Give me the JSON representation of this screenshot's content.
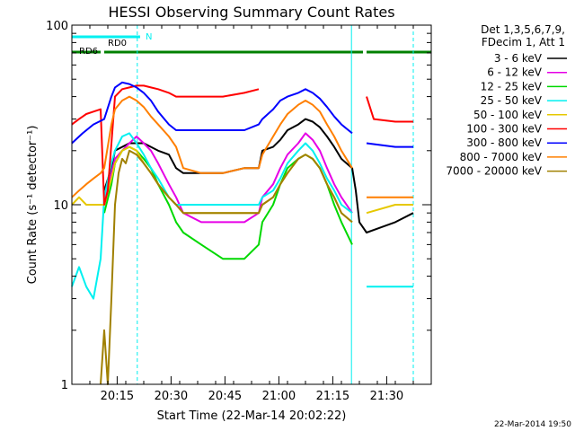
{
  "chart_data": {
    "type": "line",
    "title": "HESSI Observing Summary Count Rates",
    "xlabel": "Start Time (22-Mar-14 20:02:22)",
    "ylabel": "Count Rate (s⁻¹ detector⁻¹)",
    "y_scale": "log",
    "ylim": [
      1,
      100
    ],
    "xlim_minutes": [
      0,
      100
    ],
    "x_ticks": [
      {
        "label": "20:15",
        "t": 12.6
      },
      {
        "label": "20:30",
        "t": 27.6
      },
      {
        "label": "20:45",
        "t": 42.6
      },
      {
        "label": "21:00",
        "t": 57.6
      },
      {
        "label": "21:15",
        "t": 72.6
      },
      {
        "label": "21:30",
        "t": 87.6
      }
    ],
    "y_ticks": [
      {
        "label": "1",
        "v": 1
      },
      {
        "label": "10",
        "v": 10
      },
      {
        "label": "100",
        "v": 100
      }
    ],
    "legend": {
      "placement": "right",
      "header": [
        "Det 1,3,5,6,7,9,",
        "FDecim 1, Att 1"
      ],
      "entries": [
        {
          "label": "3 - 6 keV",
          "color": "#000000"
        },
        {
          "label": "6 - 12 keV",
          "color": "#e600e6"
        },
        {
          "label": "12 - 25 keV",
          "color": "#00d800"
        },
        {
          "label": "25 - 50 keV",
          "color": "#00f0f0"
        },
        {
          "label": "50 - 100 keV",
          "color": "#e6c800"
        },
        {
          "label": "100 - 300 keV",
          "color": "#ff0000"
        },
        {
          "label": "300 - 800 keV",
          "color": "#0000ff"
        },
        {
          "label": "800 - 7000 keV",
          "color": "#ff7f00"
        },
        {
          "label": "7000 - 20000 keV",
          "color": "#a08000"
        }
      ]
    },
    "flags": [
      {
        "label": "RD0",
        "color": "#00f0f0"
      },
      {
        "label": "RD6",
        "color": "#008000"
      },
      {
        "label": "N",
        "color": "#00f0f0"
      }
    ],
    "series": [
      {
        "name": "3 - 6 keV",
        "color": "#000000",
        "x": [
          0,
          3,
          5,
          7,
          9,
          11,
          12,
          14,
          16,
          18,
          20,
          22,
          24,
          27,
          29,
          31,
          36,
          42,
          48,
          52,
          53,
          56,
          58,
          60,
          63,
          65,
          67,
          69,
          71,
          73,
          75,
          78,
          79,
          80,
          82,
          90,
          95
        ],
        "y": [
          null,
          null,
          null,
          null,
          12,
          16,
          20,
          21,
          22,
          22,
          22,
          21,
          20,
          19,
          16,
          15,
          15,
          15,
          16,
          16,
          20,
          21,
          23,
          26,
          28,
          30,
          29,
          27,
          24,
          21,
          18,
          16,
          12,
          8,
          7,
          8,
          9
        ]
      },
      {
        "name": "6 - 12 keV",
        "color": "#e600e6",
        "x": [
          9,
          11,
          12,
          14,
          16,
          18,
          20,
          22,
          24,
          27,
          29,
          31,
          36,
          42,
          48,
          52,
          53,
          56,
          58,
          60,
          63,
          65,
          67,
          69,
          71,
          73,
          75,
          78
        ],
        "y": [
          10,
          15,
          18,
          20,
          22,
          24,
          22,
          20,
          17,
          13,
          11,
          9,
          8,
          8,
          8,
          9,
          11,
          13,
          16,
          19,
          22,
          25,
          23,
          20,
          16,
          13,
          11,
          9
        ]
      },
      {
        "name": "12 - 25 keV",
        "color": "#00d800",
        "x": [
          9,
          11,
          12,
          14,
          16,
          18,
          20,
          22,
          24,
          27,
          29,
          31,
          36,
          42,
          48,
          52,
          53,
          56,
          58,
          60,
          63,
          65,
          67,
          69,
          71,
          73,
          75,
          78
        ],
        "y": [
          9,
          13,
          17,
          20,
          21,
          20,
          18,
          16,
          13,
          10,
          8,
          7,
          6,
          5,
          5,
          6,
          8,
          10,
          13,
          16,
          18,
          19,
          18,
          16,
          13,
          10,
          8,
          6
        ]
      },
      {
        "name": "25 - 50 keV",
        "color": "#00f0f0",
        "x": [
          0,
          2,
          4,
          6,
          8,
          9,
          11,
          12,
          14,
          16,
          18,
          20,
          22,
          24,
          27,
          29,
          31,
          36,
          42,
          48,
          52,
          53,
          56,
          58,
          60,
          63,
          65,
          67,
          69,
          71,
          73,
          75,
          78,
          80,
          82,
          90,
          95
        ],
        "y": [
          3.5,
          4.5,
          3.5,
          3,
          5,
          11,
          17,
          20,
          24,
          25,
          22,
          19,
          16,
          14,
          11,
          10,
          10,
          10,
          10,
          10,
          10,
          11,
          12,
          14,
          17,
          20,
          22,
          20,
          17,
          14,
          12,
          10,
          9,
          null,
          3.5,
          3.5,
          3.5
        ]
      },
      {
        "name": "50 - 100 keV",
        "color": "#e6c800",
        "x": [
          0,
          2,
          4,
          6,
          8,
          9,
          11,
          12,
          14,
          16,
          18,
          20,
          22,
          24,
          27,
          29,
          31,
          36,
          42,
          48,
          52,
          53,
          56,
          58,
          60,
          63,
          65,
          67,
          69,
          71,
          73,
          75,
          78,
          80,
          82,
          90,
          95
        ],
        "y": [
          10,
          11,
          10,
          10,
          10,
          10,
          14,
          17,
          20,
          21,
          20,
          17,
          15,
          13,
          11,
          10,
          9,
          9,
          9,
          9,
          9,
          10,
          11,
          13,
          15,
          18,
          19,
          18,
          16,
          13,
          11,
          9,
          8,
          null,
          9,
          10,
          10
        ]
      },
      {
        "name": "100 - 300 keV",
        "color": "#ff0000",
        "x": [
          0,
          2,
          4,
          6,
          8,
          9,
          10,
          12,
          14,
          16,
          18,
          20,
          22,
          24,
          27,
          29,
          31,
          36,
          42,
          48,
          52,
          55,
          60,
          65,
          70,
          75,
          78,
          79,
          80,
          82,
          84,
          90,
          95
        ],
        "y": [
          28,
          30,
          32,
          33,
          34,
          10,
          12,
          40,
          44,
          45,
          46,
          46,
          45,
          44,
          42,
          40,
          40,
          40,
          40,
          42,
          44,
          null,
          null,
          null,
          null,
          null,
          null,
          null,
          null,
          40,
          30,
          29,
          29
        ]
      },
      {
        "name": "300 - 800 keV",
        "color": "#0000ff",
        "x": [
          0,
          3,
          6,
          9,
          11,
          12,
          14,
          16,
          18,
          20,
          22,
          24,
          27,
          29,
          31,
          36,
          42,
          48,
          52,
          53,
          56,
          58,
          60,
          63,
          65,
          67,
          69,
          71,
          73,
          75,
          78,
          80,
          82,
          90,
          95
        ],
        "y": [
          22,
          25,
          28,
          30,
          40,
          45,
          48,
          47,
          45,
          42,
          38,
          33,
          28,
          26,
          26,
          26,
          26,
          26,
          28,
          30,
          34,
          38,
          40,
          42,
          44,
          42,
          39,
          35,
          31,
          28,
          25,
          null,
          22,
          21,
          21
        ]
      },
      {
        "name": "800 - 7000 keV",
        "color": "#ff7f00",
        "x": [
          0,
          2,
          4,
          6,
          8,
          9,
          11,
          12,
          14,
          16,
          18,
          20,
          22,
          24,
          27,
          29,
          31,
          36,
          42,
          48,
          52,
          53,
          56,
          58,
          60,
          63,
          65,
          67,
          69,
          71,
          73,
          75,
          78,
          80,
          82,
          90,
          95
        ],
        "y": [
          11,
          12,
          13,
          14,
          15,
          16,
          28,
          34,
          38,
          40,
          38,
          35,
          31,
          28,
          24,
          21,
          16,
          15,
          15,
          16,
          16,
          19,
          24,
          28,
          32,
          36,
          38,
          36,
          33,
          28,
          24,
          20,
          16,
          null,
          11,
          11,
          11
        ]
      },
      {
        "name": "7000 - 20000 keV",
        "color": "#a08000",
        "x": [
          8,
          9,
          10,
          11,
          12,
          13,
          14,
          15,
          16,
          18,
          20,
          22,
          24,
          27,
          29,
          31,
          36,
          42,
          48,
          52,
          53,
          56,
          58,
          60,
          63,
          65,
          67,
          69,
          71,
          73,
          75,
          78
        ],
        "y": [
          1,
          2,
          1,
          3,
          10,
          15,
          18,
          17,
          20,
          19,
          17,
          15,
          13,
          11,
          10,
          9,
          9,
          9,
          9,
          9,
          10,
          11,
          13,
          15,
          18,
          19,
          18,
          16,
          13,
          11,
          9,
          8
        ]
      }
    ]
  },
  "footer": {
    "date_stamp": "22-Mar-2014 19:50"
  }
}
